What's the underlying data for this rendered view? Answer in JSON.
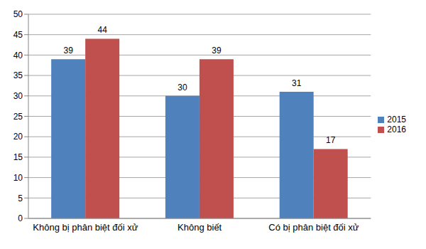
{
  "chart_data": {
    "type": "bar",
    "categories": [
      "Không bị phân biệt đối xử",
      "Không biết",
      "Có bị phân biệt đối xử"
    ],
    "series": [
      {
        "name": "2015",
        "color": "#4f81bd",
        "values": [
          39,
          30,
          31
        ]
      },
      {
        "name": "2016",
        "color": "#c0504d",
        "values": [
          44,
          39,
          17
        ]
      }
    ],
    "ylim": [
      0,
      50
    ],
    "yticks": [
      0,
      5,
      10,
      15,
      20,
      25,
      30,
      35,
      40,
      45,
      50
    ],
    "grid": true,
    "legend": "right",
    "data_labels": true
  }
}
